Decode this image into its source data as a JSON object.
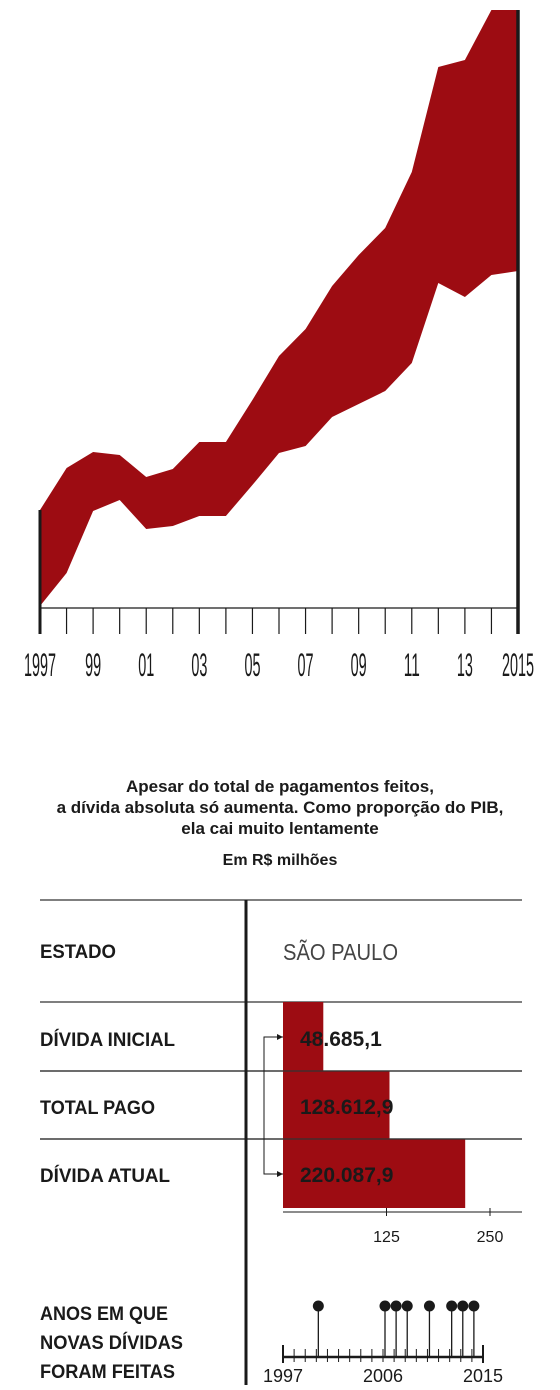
{
  "chart_data": [
    {
      "type": "area",
      "x": [
        1997,
        1998,
        1999,
        2000,
        2001,
        2002,
        2003,
        2004,
        2005,
        2006,
        2007,
        2008,
        2009,
        2010,
        2011,
        2012,
        2013,
        2014,
        2015
      ],
      "series": [
        {
          "values": [
            510,
            468,
            452,
            455,
            477,
            469,
            442,
            442,
            400,
            356,
            329,
            286,
            255,
            228,
            172,
            67,
            60,
            10,
            10
          ]
        },
        {
          "values": [
            606,
            573,
            511,
            500,
            529,
            526,
            516,
            516,
            485,
            453,
            446,
            417,
            404,
            391,
            363,
            283,
            297,
            275,
            271
          ]
        }
      ],
      "tick_labels": [
        "1997",
        "99",
        "01",
        "03",
        "05",
        "07",
        "09",
        "11",
        "13",
        "2015"
      ],
      "tick_years": [
        1997,
        1999,
        2001,
        2003,
        2005,
        2007,
        2009,
        2011,
        2013,
        2015
      ],
      "xlim": [
        1997,
        2015
      ],
      "fill_color": "#9d0c12"
    },
    {
      "type": "bar",
      "orientation": "horizontal",
      "header": {
        "label": "ESTADO",
        "value": "SÃO PAULO"
      },
      "categories": [
        "DÍVIDA INICIAL",
        "TOTAL PAGO",
        "DÍVIDA ATUAL"
      ],
      "values": [
        48.6851,
        128.6129,
        220.0879
      ],
      "value_labels": [
        "48.685,1",
        "128.612,9",
        "220.087,9"
      ],
      "ticks": [
        125,
        250
      ],
      "xlim": [
        0,
        250
      ],
      "bar_color": "#9d0c12"
    },
    {
      "type": "timeline",
      "label_lines": [
        "ANOS EM QUE",
        "NOVAS DÍVIDAS",
        "FORAM FEITAS"
      ],
      "years": [
        2000,
        2006,
        2007,
        2008,
        2010,
        2012,
        2013,
        2014
      ],
      "tick_labels": [
        "1997",
        "2006",
        "2015"
      ],
      "xlim": [
        1997,
        2015
      ]
    }
  ],
  "text": {
    "subtitle_lines": [
      "Apesar do total de pagamentos feitos,",
      "a dívida absoluta só aumenta. Como proporção do PIB,",
      "ela cai muito lentamente"
    ],
    "unit": "Em R$ milhões"
  },
  "colors": {
    "accent": "#9d0c12",
    "ink": "#1a1a1a",
    "rule": "#333333"
  }
}
